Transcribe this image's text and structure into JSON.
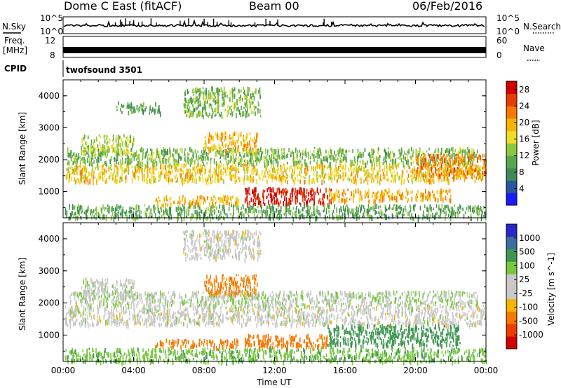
{
  "header": {
    "station": "Dome C East (fitACF)",
    "beam": "Beam 00",
    "date": "06/Feb/2016"
  },
  "noise_panel": {
    "left_label": "N.Sky",
    "left_ticks": [
      "10^5",
      "10^0"
    ],
    "right_label": "N.Search",
    "right_ticks": [
      "10^5",
      "10^0"
    ]
  },
  "freq_panel": {
    "left_label_line1": "Freq.",
    "left_label_line2": "[MHz]",
    "left_ticks": [
      "12",
      "8"
    ],
    "right_label": "Nave",
    "right_ticks": [
      "60",
      "0"
    ]
  },
  "cpid_panel": {
    "label": "CPID",
    "program": "twofsound 3501"
  },
  "colors": {
    "power_scale": [
      "#1a1aff",
      "#2c55a0",
      "#3f8a5a",
      "#5aa64e",
      "#8cc83c",
      "#f0dc28",
      "#f5b400",
      "#f57800",
      "#e63c00",
      "#d20000"
    ],
    "velocity_scale": [
      "#d20000",
      "#f03c00",
      "#f57800",
      "#f5b400",
      "#c8c8c8",
      "#c8c8c8",
      "#78c83c",
      "#3c9650",
      "#3c6ea0",
      "#2828c8"
    ]
  },
  "chart_data": [
    {
      "type": "heatmap",
      "title": "",
      "ylabel": "Slant Range [km]",
      "xlabel": "",
      "x_range_hours": [
        0,
        24
      ],
      "ylim": [
        180,
        4500
      ],
      "yticks": [
        "1000",
        "2000",
        "3000",
        "4000"
      ],
      "colorbar": {
        "label": "Power [dB]",
        "ticks": [
          "4",
          "8",
          "12",
          "16",
          "20",
          "24",
          "28"
        ],
        "range": [
          0,
          30
        ]
      },
      "regions": [
        {
          "t0": 0.1,
          "t1": 24.0,
          "r0": 1350,
          "r1": 1900,
          "value": 18
        },
        {
          "t0": 0.2,
          "t1": 23.5,
          "r0": 1900,
          "r1": 2400,
          "value": 12
        },
        {
          "t0": 5.2,
          "t1": 10.0,
          "r0": 620,
          "r1": 900,
          "value": 20
        },
        {
          "t0": 10.3,
          "t1": 15.2,
          "r0": 620,
          "r1": 1150,
          "value": 28
        },
        {
          "t0": 15.0,
          "t1": 22.0,
          "r0": 750,
          "r1": 1100,
          "value": 20
        },
        {
          "t0": 1.0,
          "t1": 4.0,
          "r0": 2200,
          "r1": 2800,
          "value": 14
        },
        {
          "t0": 8.0,
          "t1": 11.0,
          "r0": 2300,
          "r1": 2900,
          "value": 20
        },
        {
          "t0": 6.8,
          "t1": 11.2,
          "r0": 3400,
          "r1": 4300,
          "value": 12
        },
        {
          "t0": 3.0,
          "t1": 5.5,
          "r0": 3500,
          "r1": 3850,
          "value": 10
        },
        {
          "t0": 0.1,
          "t1": 24.0,
          "r0": 200,
          "r1": 620,
          "value": 10
        },
        {
          "t0": 20.0,
          "t1": 24.0,
          "r0": 1500,
          "r1": 2200,
          "value": 22
        }
      ]
    },
    {
      "type": "heatmap",
      "title": "",
      "ylabel": "Slant Range [km]",
      "xlabel": "Time UT",
      "x_range_hours": [
        0,
        24
      ],
      "xticks": [
        "00:00",
        "04:00",
        "08:00",
        "12:00",
        "16:00",
        "20:00",
        "00:00"
      ],
      "ylim": [
        180,
        4500
      ],
      "yticks": [
        "1000",
        "2000",
        "3000",
        "4000"
      ],
      "colorbar": {
        "label": "Velocity [m s^-1]",
        "ticks": [
          "-1000",
          "-500",
          "-100",
          "-25",
          "25",
          "100",
          "500",
          "1000"
        ],
        "range": [
          -1250,
          1250
        ]
      },
      "regions": [
        {
          "t0": 0.1,
          "t1": 24.0,
          "r0": 1350,
          "r1": 1950,
          "value": 0
        },
        {
          "t0": 0.2,
          "t1": 23.5,
          "r0": 1950,
          "r1": 2400,
          "value": 20
        },
        {
          "t0": 5.2,
          "t1": 10.0,
          "r0": 650,
          "r1": 900,
          "value": -300
        },
        {
          "t0": 10.3,
          "t1": 15.0,
          "r0": 650,
          "r1": 1050,
          "value": -250
        },
        {
          "t0": 15.0,
          "t1": 22.5,
          "r0": 700,
          "r1": 1350,
          "value": 250
        },
        {
          "t0": 1.0,
          "t1": 4.0,
          "r0": 2200,
          "r1": 2800,
          "value": 10
        },
        {
          "t0": 8.0,
          "t1": 11.0,
          "r0": 2300,
          "r1": 2900,
          "value": -150
        },
        {
          "t0": 6.8,
          "t1": 11.2,
          "r0": 3400,
          "r1": 4300,
          "value": 0
        },
        {
          "t0": 0.1,
          "t1": 24.0,
          "r0": 200,
          "r1": 620,
          "value": 80
        }
      ]
    }
  ]
}
